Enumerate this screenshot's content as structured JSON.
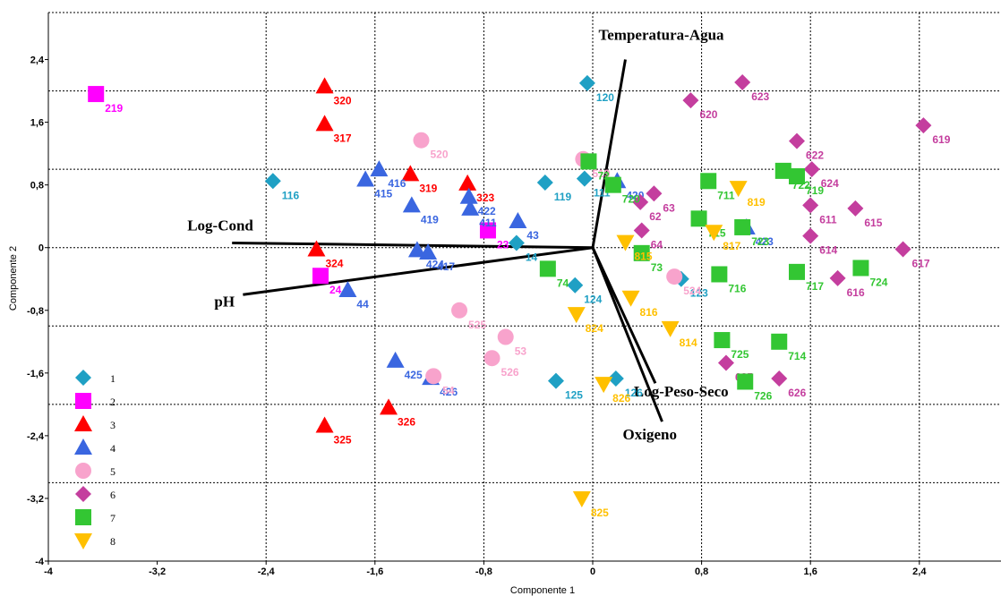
{
  "chart_data": {
    "type": "scatter",
    "xlabel": "Componente 1",
    "ylabel": "Componente 2",
    "xlim": [
      -4,
      3.0
    ],
    "ylim": [
      -4,
      3.0
    ],
    "x_ticks": [
      {
        "v": -4,
        "label": "-4"
      },
      {
        "v": -3.2,
        "label": "-3,2"
      },
      {
        "v": -2.4,
        "label": "-2,4"
      },
      {
        "v": -1.6,
        "label": "-1,6"
      },
      {
        "v": -0.8,
        "label": "-0,8"
      },
      {
        "v": 0,
        "label": "0"
      },
      {
        "v": 0.8,
        "label": "0,8"
      },
      {
        "v": 1.6,
        "label": "1,6"
      },
      {
        "v": 2.4,
        "label": "2,4"
      }
    ],
    "y_ticks": [
      {
        "v": 2.4,
        "label": "2,4"
      },
      {
        "v": 1.6,
        "label": "1,6"
      },
      {
        "v": 0.8,
        "label": "0,8"
      },
      {
        "v": 0,
        "label": "0"
      },
      {
        "v": -0.8,
        "label": "-0,8"
      },
      {
        "v": -1.6,
        "label": "-1,6"
      },
      {
        "v": -2.4,
        "label": "-2,4"
      },
      {
        "v": -3.2,
        "label": "-3,2"
      },
      {
        "v": -4,
        "label": "-4"
      }
    ],
    "grid_x": [
      -2.4,
      -1.6,
      -0.8,
      0,
      0.8,
      1.6,
      2.4
    ],
    "grid_y": [
      2.0,
      1.0,
      0,
      -1.0,
      -2.0,
      -3.0
    ],
    "grid": true,
    "legend_position": "bottom-left",
    "series": [
      {
        "name": "1",
        "marker": "diamond",
        "color": "#1fa0c4",
        "points": [
          {
            "x": -2.35,
            "y": 0.85,
            "label": "116"
          },
          {
            "x": -0.04,
            "y": 2.1,
            "label": "120"
          },
          {
            "x": -0.35,
            "y": 0.83,
            "label": "119"
          },
          {
            "x": -0.06,
            "y": 0.88,
            "label": "111"
          },
          {
            "x": -0.56,
            "y": 0.06,
            "label": "14"
          },
          {
            "x": -0.13,
            "y": -0.48,
            "label": "124"
          },
          {
            "x": 0.65,
            "y": -0.4,
            "label": "123"
          },
          {
            "x": -0.27,
            "y": -1.7,
            "label": "125"
          },
          {
            "x": 0.17,
            "y": -1.67,
            "label": "126"
          }
        ]
      },
      {
        "name": "2",
        "marker": "square",
        "color": "#ff00ff",
        "points": [
          {
            "x": -3.65,
            "y": 1.96,
            "label": "219"
          },
          {
            "x": -0.77,
            "y": 0.22,
            "label": "23"
          },
          {
            "x": -2.0,
            "y": -0.36,
            "label": "24"
          }
        ]
      },
      {
        "name": "3",
        "marker": "triangle-up",
        "color": "#ff0000",
        "points": [
          {
            "x": -1.97,
            "y": 2.06,
            "label": "320"
          },
          {
            "x": -1.97,
            "y": 1.58,
            "label": "317"
          },
          {
            "x": -1.34,
            "y": 0.94,
            "label": "319"
          },
          {
            "x": -0.92,
            "y": 0.82,
            "label": "323"
          },
          {
            "x": -2.03,
            "y": -0.02,
            "label": "324"
          },
          {
            "x": -1.97,
            "y": -2.27,
            "label": "325"
          },
          {
            "x": -1.5,
            "y": -2.04,
            "label": "326"
          }
        ]
      },
      {
        "name": "4",
        "marker": "triangle-up",
        "color": "#3a66e0",
        "points": [
          {
            "x": -1.57,
            "y": 1.0,
            "label": "416"
          },
          {
            "x": -1.67,
            "y": 0.87,
            "label": "415"
          },
          {
            "x": -1.33,
            "y": 0.54,
            "label": "419"
          },
          {
            "x": -0.91,
            "y": 0.65,
            "label": "422"
          },
          {
            "x": -0.9,
            "y": 0.5,
            "label": "411"
          },
          {
            "x": -0.55,
            "y": 0.34,
            "label": "43"
          },
          {
            "x": 0.18,
            "y": 0.85,
            "label": "420"
          },
          {
            "x": 1.13,
            "y": 0.26,
            "label": "423"
          },
          {
            "x": -1.29,
            "y": -0.03,
            "label": "424"
          },
          {
            "x": -1.21,
            "y": -0.06,
            "label": "417"
          },
          {
            "x": -1.8,
            "y": -0.54,
            "label": "44"
          },
          {
            "x": -1.45,
            "y": -1.44,
            "label": "425"
          },
          {
            "x": -1.19,
            "y": -1.66,
            "label": "426"
          }
        ]
      },
      {
        "name": "5",
        "marker": "circle",
        "color": "#f8a3cc",
        "points": [
          {
            "x": -1.26,
            "y": 1.37,
            "label": "520"
          },
          {
            "x": -0.07,
            "y": 1.13,
            "label": "519"
          },
          {
            "x": 0.6,
            "y": -0.37,
            "label": "524"
          },
          {
            "x": -0.98,
            "y": -0.8,
            "label": "525"
          },
          {
            "x": -0.64,
            "y": -1.14,
            "label": "53"
          },
          {
            "x": -0.74,
            "y": -1.41,
            "label": "526"
          },
          {
            "x": -1.17,
            "y": -1.64,
            "label": "54"
          }
        ]
      },
      {
        "name": "6",
        "marker": "diamond",
        "color": "#c43e9e",
        "points": [
          {
            "x": 0.72,
            "y": 1.88,
            "label": "620"
          },
          {
            "x": 1.1,
            "y": 2.11,
            "label": "623"
          },
          {
            "x": 2.43,
            "y": 1.56,
            "label": "619"
          },
          {
            "x": 1.5,
            "y": 1.36,
            "label": "622"
          },
          {
            "x": 1.61,
            "y": 1.0,
            "label": "624"
          },
          {
            "x": 0.45,
            "y": 0.69,
            "label": "63"
          },
          {
            "x": 0.35,
            "y": 0.58,
            "label": "62"
          },
          {
            "x": 1.6,
            "y": 0.54,
            "label": "611"
          },
          {
            "x": 1.93,
            "y": 0.5,
            "label": "615"
          },
          {
            "x": 0.36,
            "y": 0.22,
            "label": "64"
          },
          {
            "x": 1.6,
            "y": 0.15,
            "label": "614"
          },
          {
            "x": 2.28,
            "y": -0.02,
            "label": "617"
          },
          {
            "x": 1.8,
            "y": -0.39,
            "label": "616"
          },
          {
            "x": 0.98,
            "y": -1.47,
            "label": "625"
          },
          {
            "x": 1.37,
            "y": -1.67,
            "label": "626"
          }
        ]
      },
      {
        "name": "7",
        "marker": "square",
        "color": "#33c633",
        "points": [
          {
            "x": -0.03,
            "y": 1.1,
            "label": "72"
          },
          {
            "x": 0.85,
            "y": 0.85,
            "label": "711"
          },
          {
            "x": 1.4,
            "y": 0.98,
            "label": "722"
          },
          {
            "x": 1.5,
            "y": 0.91,
            "label": "719"
          },
          {
            "x": 0.15,
            "y": 0.8,
            "label": "720"
          },
          {
            "x": 0.78,
            "y": 0.37,
            "label": "715"
          },
          {
            "x": 1.1,
            "y": 0.26,
            "label": "723"
          },
          {
            "x": 0.36,
            "y": -0.07,
            "label": "73"
          },
          {
            "x": 1.5,
            "y": -0.31,
            "label": "717"
          },
          {
            "x": -0.33,
            "y": -0.27,
            "label": "74"
          },
          {
            "x": 0.93,
            "y": -0.34,
            "label": "716"
          },
          {
            "x": 1.97,
            "y": -0.26,
            "label": "724"
          },
          {
            "x": 0.95,
            "y": -1.18,
            "label": "725"
          },
          {
            "x": 1.37,
            "y": -1.2,
            "label": "714"
          },
          {
            "x": 1.12,
            "y": -1.71,
            "label": "726"
          }
        ]
      },
      {
        "name": "8",
        "marker": "triangle-down",
        "color": "#ffc000",
        "points": [
          {
            "x": 1.07,
            "y": 0.76,
            "label": "819"
          },
          {
            "x": 0.89,
            "y": 0.2,
            "label": "817"
          },
          {
            "x": 0.24,
            "y": 0.07,
            "label": "815"
          },
          {
            "x": 0.28,
            "y": -0.64,
            "label": "816"
          },
          {
            "x": -0.12,
            "y": -0.85,
            "label": "824"
          },
          {
            "x": 0.57,
            "y": -1.03,
            "label": "814"
          },
          {
            "x": 0.08,
            "y": -1.74,
            "label": "826"
          },
          {
            "x": -0.08,
            "y": -3.2,
            "label": "825"
          }
        ]
      }
    ],
    "vectors": [
      {
        "name": "Temperatura-Agua",
        "x": 0.24,
        "y": 2.4
      },
      {
        "name": "Log-Cond",
        "x": -2.65,
        "y": 0.06
      },
      {
        "name": "pH",
        "x": -2.57,
        "y": -0.6
      },
      {
        "name": "Log-Peso-Seco",
        "x": 0.46,
        "y": -1.73
      },
      {
        "name": "Oxigeno",
        "x": 0.51,
        "y": -2.22
      }
    ]
  }
}
